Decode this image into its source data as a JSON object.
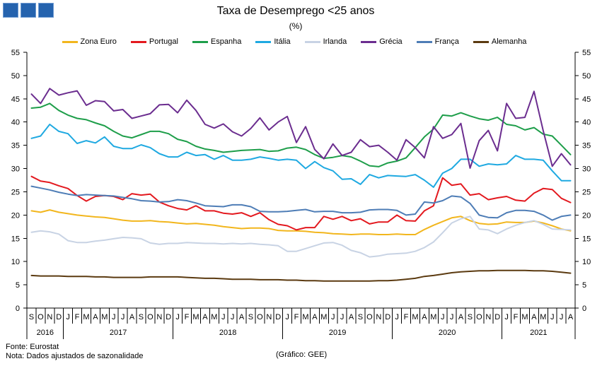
{
  "chart_data": {
    "type": "line",
    "title": "Taxa de Desemprego <25 anos",
    "subtitle": "(%)",
    "xlabel": "",
    "ylabel": "",
    "ylim": [
      0,
      55
    ],
    "y_ticks": [
      0,
      5,
      10,
      15,
      20,
      25,
      30,
      35,
      40,
      45,
      50,
      55
    ],
    "grid": false,
    "legend_position": "top",
    "x_tick_labels": [
      "S",
      "O",
      "N",
      "D",
      "J",
      "F",
      "M",
      "A",
      "M",
      "J",
      "J",
      "A",
      "S",
      "O",
      "N",
      "D",
      "J",
      "F",
      "M",
      "A",
      "M",
      "J",
      "J",
      "A",
      "S",
      "O",
      "N",
      "D",
      "J",
      "F",
      "M",
      "A",
      "M",
      "J",
      "J",
      "A",
      "S",
      "O",
      "N",
      "D",
      "J",
      "F",
      "M",
      "A",
      "M",
      "J",
      "J",
      "A",
      "S",
      "O",
      "N",
      "D",
      "J",
      "F",
      "M",
      "A",
      "M",
      "J",
      "J",
      "A"
    ],
    "year_groups": [
      {
        "label": "2016",
        "first": 0,
        "last": 3
      },
      {
        "label": "2017",
        "first": 4,
        "last": 15
      },
      {
        "label": "2018",
        "first": 16,
        "last": 27
      },
      {
        "label": "2019",
        "first": 28,
        "last": 39
      },
      {
        "label": "2020",
        "first": 40,
        "last": 51
      },
      {
        "label": "2021",
        "first": 52,
        "last": 59
      }
    ],
    "series": [
      {
        "name": "Zona Euro",
        "color": "#F2B61D",
        "values": [
          20.9,
          20.6,
          21.1,
          20.6,
          20.3,
          20.0,
          19.8,
          19.6,
          19.5,
          19.2,
          18.9,
          18.7,
          18.7,
          18.8,
          18.6,
          18.5,
          18.3,
          18.1,
          18.2,
          18.0,
          17.8,
          17.5,
          17.3,
          17.1,
          17.2,
          17.2,
          17.1,
          16.7,
          16.6,
          16.6,
          16.5,
          16.3,
          16.2,
          16.0,
          15.9,
          15.8,
          15.9,
          15.9,
          15.8,
          15.8,
          15.9,
          15.8,
          15.8,
          16.9,
          17.8,
          18.6,
          19.4,
          19.7,
          18.8,
          18.2,
          18.0,
          18.1,
          18.5,
          18.4,
          18.4,
          18.7,
          18.3,
          17.7,
          17.0,
          16.6
        ]
      },
      {
        "name": "Portugal",
        "color": "#E3191F",
        "values": [
          28.3,
          27.3,
          27.0,
          26.3,
          25.7,
          24.2,
          23.0,
          24.0,
          24.2,
          24.0,
          23.3,
          24.6,
          24.3,
          24.5,
          22.8,
          22.0,
          21.4,
          21.1,
          22.0,
          20.9,
          20.9,
          20.4,
          20.2,
          20.5,
          19.7,
          20.5,
          19.0,
          18.0,
          17.7,
          16.8,
          17.3,
          17.3,
          19.7,
          19.1,
          19.7,
          18.8,
          19.2,
          18.1,
          18.5,
          18.5,
          20.0,
          18.8,
          18.7,
          20.9,
          22.0,
          28.0,
          26.4,
          26.7,
          24.3,
          24.6,
          23.3,
          23.7,
          24.0,
          23.2,
          23.0,
          24.7,
          25.7,
          25.5,
          23.6,
          22.7
        ]
      },
      {
        "name": "Espanha",
        "color": "#1E9E4A",
        "values": [
          43.0,
          43.2,
          44.0,
          42.5,
          41.5,
          40.8,
          40.5,
          39.8,
          39.2,
          38.0,
          37.0,
          36.6,
          37.3,
          38.0,
          38.0,
          37.5,
          36.3,
          35.8,
          34.8,
          34.2,
          33.9,
          33.5,
          33.7,
          33.9,
          34.0,
          34.1,
          33.7,
          33.8,
          34.4,
          34.6,
          34.1,
          33.0,
          32.2,
          32.4,
          32.8,
          32.5,
          31.6,
          30.6,
          30.4,
          31.2,
          31.6,
          32.3,
          34.5,
          36.8,
          38.5,
          41.5,
          41.3,
          42.0,
          41.3,
          40.7,
          40.4,
          41.0,
          39.5,
          39.2,
          38.3,
          38.8,
          37.4,
          37.0,
          35.0,
          33.0
        ]
      },
      {
        "name": "Itália",
        "color": "#1FA9E1",
        "values": [
          36.5,
          37.0,
          39.5,
          38.0,
          37.5,
          35.4,
          36.0,
          35.5,
          36.8,
          34.8,
          34.3,
          34.3,
          35.1,
          34.5,
          33.2,
          32.5,
          32.5,
          33.5,
          32.8,
          33.0,
          32.0,
          32.8,
          31.8,
          31.8,
          32.0,
          32.5,
          32.2,
          31.8,
          32.0,
          31.8,
          30.0,
          31.5,
          30.2,
          29.5,
          27.7,
          27.8,
          26.6,
          28.7,
          28.0,
          28.5,
          28.4,
          28.3,
          28.7,
          27.5,
          26.0,
          29.0,
          30.0,
          32.0,
          32.0,
          30.5,
          31.0,
          30.8,
          31.0,
          32.8,
          32.0,
          32.0,
          31.8,
          29.5,
          27.4,
          27.4
        ]
      },
      {
        "name": "Irlanda",
        "color": "#C8D3E4",
        "values": [
          16.3,
          16.6,
          16.4,
          15.9,
          14.5,
          14.1,
          14.1,
          14.4,
          14.6,
          14.9,
          15.2,
          15.1,
          14.9,
          14.0,
          13.7,
          13.9,
          13.9,
          14.1,
          14.0,
          13.9,
          13.9,
          13.8,
          13.9,
          13.8,
          13.9,
          13.7,
          13.6,
          13.4,
          12.2,
          12.2,
          12.8,
          13.4,
          14.0,
          14.1,
          13.5,
          12.4,
          11.9,
          11.0,
          11.2,
          11.6,
          11.7,
          11.8,
          12.2,
          13.0,
          14.2,
          16.2,
          18.3,
          19.2,
          19.7,
          17.0,
          16.8,
          16.0,
          17.0,
          17.8,
          18.4,
          18.8,
          18.0,
          17.0,
          16.9,
          16.8
        ]
      },
      {
        "name": "Grécia",
        "color": "#6B2D8F",
        "values": [
          46.0,
          44.0,
          47.2,
          45.8,
          46.3,
          46.7,
          43.6,
          44.6,
          44.4,
          42.4,
          42.7,
          40.8,
          41.3,
          41.8,
          43.7,
          43.8,
          42.0,
          44.7,
          42.5,
          39.5,
          38.7,
          39.6,
          37.9,
          37.0,
          38.6,
          40.9,
          38.3,
          40.0,
          41.2,
          35.6,
          39.0,
          34.1,
          32.1,
          35.3,
          32.8,
          33.5,
          36.2,
          34.7,
          35.0,
          33.5,
          31.8,
          36.2,
          34.5,
          32.3,
          39.0,
          36.5,
          37.3,
          39.7,
          30.1,
          36.0,
          38.2,
          33.8,
          44.0,
          40.8,
          41.0,
          46.6,
          38.2,
          30.5,
          33.2,
          30.8
        ]
      },
      {
        "name": "França",
        "color": "#4E7DB6",
        "values": [
          26.2,
          25.8,
          25.4,
          24.9,
          24.5,
          24.2,
          24.4,
          24.3,
          24.2,
          24.1,
          23.8,
          23.5,
          23.1,
          23.0,
          22.8,
          22.9,
          23.3,
          23.1,
          22.6,
          22.0,
          21.9,
          21.8,
          22.2,
          22.2,
          21.8,
          20.8,
          20.7,
          20.7,
          20.8,
          21.0,
          21.2,
          20.7,
          20.8,
          20.8,
          20.5,
          20.5,
          20.6,
          21.1,
          21.2,
          21.2,
          21.0,
          20.0,
          20.2,
          22.8,
          22.6,
          23.1,
          24.1,
          23.9,
          22.5,
          20.0,
          19.5,
          19.4,
          20.5,
          21.0,
          21.0,
          20.8,
          20.0,
          18.9,
          19.7,
          20.0
        ]
      },
      {
        "name": "Alemanha",
        "color": "#5B3A10",
        "values": [
          7.0,
          6.9,
          6.9,
          6.9,
          6.8,
          6.8,
          6.8,
          6.7,
          6.7,
          6.6,
          6.6,
          6.6,
          6.6,
          6.7,
          6.7,
          6.7,
          6.7,
          6.6,
          6.5,
          6.4,
          6.4,
          6.3,
          6.2,
          6.2,
          6.2,
          6.1,
          6.1,
          6.1,
          6.0,
          6.0,
          5.9,
          5.9,
          5.8,
          5.8,
          5.8,
          5.8,
          5.8,
          5.8,
          5.9,
          5.9,
          6.0,
          6.2,
          6.4,
          6.8,
          7.0,
          7.3,
          7.6,
          7.8,
          7.9,
          8.0,
          8.0,
          8.1,
          8.1,
          8.1,
          8.1,
          8.0,
          8.0,
          7.9,
          7.7,
          7.5
        ]
      }
    ]
  },
  "footer": {
    "source": "Fonte: Eurostat",
    "note": "Nota: Dados ajustados de sazonalidade",
    "credit": "(Gráfico: GEE)"
  },
  "brand": {
    "logo_color": "#2563AE"
  }
}
